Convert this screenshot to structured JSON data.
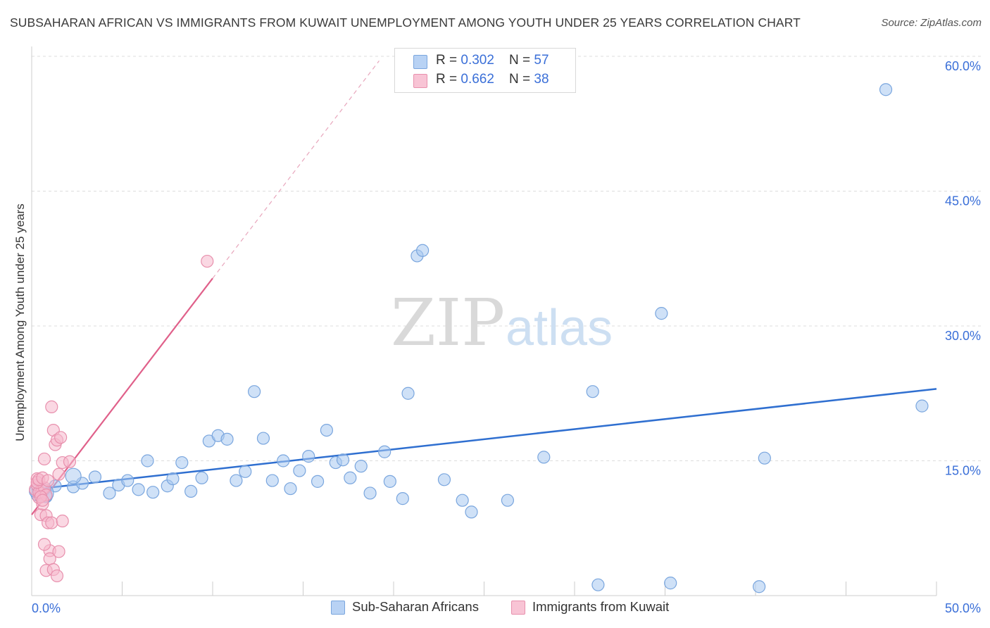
{
  "header": {
    "title": "SUBSAHARAN AFRICAN VS IMMIGRANTS FROM KUWAIT UNEMPLOYMENT AMONG YOUTH UNDER 25 YEARS CORRELATION CHART",
    "source": "Source: ZipAtlas.com"
  },
  "watermark": {
    "zip": "ZIP",
    "atlas": "atlas"
  },
  "legend": {
    "rows": [
      {
        "r_label": "R = ",
        "r_value": "0.302",
        "n_label": "N = ",
        "n_value": "57"
      },
      {
        "r_label": "R = ",
        "r_value": "0.662",
        "n_label": "N = ",
        "n_value": "38"
      }
    ],
    "bottom": [
      "Sub-Saharan Africans",
      "Immigrants from Kuwait"
    ]
  },
  "colors": {
    "blue_fill": "#a8c8f0",
    "blue_stroke": "#7aa6de",
    "blue_line": "#2f6fd0",
    "pink_fill": "#f5b8cc",
    "pink_stroke": "#e890ad",
    "pink_line": "#e0608a",
    "axis_label": "#3a6fd8",
    "grid": "#dddddd"
  },
  "chart_data": {
    "type": "scatter",
    "title": "SUBSAHARAN AFRICAN VS IMMIGRANTS FROM KUWAIT UNEMPLOYMENT AMONG YOUTH UNDER 25 YEARS CORRELATION CHART",
    "xlabel": "",
    "ylabel": "Unemployment Among Youth under 25 years",
    "xlim": [
      0,
      50
    ],
    "ylim": [
      0,
      60
    ],
    "x_tick_labels": [
      "0.0%",
      "50.0%"
    ],
    "y_tick_labels": [
      "15.0%",
      "30.0%",
      "45.0%",
      "60.0%"
    ],
    "y_ticks": [
      15,
      30,
      45,
      60
    ],
    "grid": true,
    "legend_position": "top-center",
    "series": [
      {
        "name": "Sub-Saharan Africans",
        "R": 0.302,
        "N": 57,
        "trend": {
          "x": [
            0,
            50
          ],
          "y": [
            11.8,
            23.0
          ]
        },
        "points": [
          [
            0.3,
            11.2
          ],
          [
            0.5,
            11.5
          ],
          [
            0.8,
            11.0
          ],
          [
            1.3,
            12.2
          ],
          [
            2.3,
            12.1
          ],
          [
            2.8,
            12.5
          ],
          [
            3.5,
            13.2
          ],
          [
            4.3,
            11.4
          ],
          [
            4.8,
            12.3
          ],
          [
            5.3,
            12.8
          ],
          [
            5.9,
            11.8
          ],
          [
            6.4,
            15.0
          ],
          [
            6.7,
            11.5
          ],
          [
            7.5,
            12.2
          ],
          [
            7.8,
            13.0
          ],
          [
            8.3,
            14.8
          ],
          [
            8.8,
            11.6
          ],
          [
            9.4,
            13.1
          ],
          [
            9.8,
            17.2
          ],
          [
            10.3,
            17.8
          ],
          [
            10.8,
            17.4
          ],
          [
            11.3,
            12.8
          ],
          [
            11.8,
            13.8
          ],
          [
            12.3,
            22.7
          ],
          [
            12.8,
            17.5
          ],
          [
            13.3,
            12.8
          ],
          [
            13.9,
            15.0
          ],
          [
            14.3,
            11.9
          ],
          [
            14.8,
            13.9
          ],
          [
            15.3,
            15.5
          ],
          [
            15.8,
            12.7
          ],
          [
            16.3,
            18.4
          ],
          [
            16.8,
            14.8
          ],
          [
            17.2,
            15.1
          ],
          [
            17.6,
            13.1
          ],
          [
            18.2,
            14.4
          ],
          [
            18.7,
            11.4
          ],
          [
            19.5,
            16.0
          ],
          [
            19.8,
            12.7
          ],
          [
            20.5,
            10.8
          ],
          [
            20.8,
            22.5
          ],
          [
            21.3,
            37.8
          ],
          [
            21.6,
            38.4
          ],
          [
            22.8,
            12.9
          ],
          [
            23.8,
            10.6
          ],
          [
            24.3,
            9.3
          ],
          [
            26.3,
            10.6
          ],
          [
            28.3,
            15.4
          ],
          [
            31.0,
            22.7
          ],
          [
            31.3,
            1.2
          ],
          [
            34.8,
            31.4
          ],
          [
            35.3,
            1.4
          ],
          [
            40.2,
            1.0
          ],
          [
            40.5,
            15.3
          ],
          [
            47.2,
            56.3
          ],
          [
            49.2,
            21.1
          ],
          [
            0.2,
            11.6
          ]
        ]
      },
      {
        "name": "Immigrants from Kuwait",
        "R": 0.662,
        "N": 38,
        "trend": {
          "x": [
            0,
            10
          ],
          "y": [
            9.0,
            35.3
          ]
        },
        "trend_dashed": {
          "x": [
            10,
            19.2
          ],
          "y": [
            35.3,
            59.5
          ]
        },
        "points": [
          [
            0.2,
            11.8
          ],
          [
            0.3,
            12.3
          ],
          [
            0.4,
            10.9
          ],
          [
            0.5,
            11.4
          ],
          [
            0.6,
            11.9
          ],
          [
            0.3,
            13.0
          ],
          [
            0.4,
            11.5
          ],
          [
            0.5,
            9.0
          ],
          [
            0.6,
            10.2
          ],
          [
            0.7,
            12.0
          ],
          [
            0.8,
            11.2
          ],
          [
            0.3,
            12.6
          ],
          [
            0.4,
            12.9
          ],
          [
            0.6,
            13.1
          ],
          [
            0.5,
            11.0
          ],
          [
            0.7,
            15.2
          ],
          [
            0.8,
            8.9
          ],
          [
            0.9,
            8.1
          ],
          [
            1.0,
            5.0
          ],
          [
            1.0,
            4.1
          ],
          [
            1.1,
            21.0
          ],
          [
            1.2,
            18.4
          ],
          [
            1.3,
            16.8
          ],
          [
            1.4,
            17.3
          ],
          [
            1.5,
            13.5
          ],
          [
            1.6,
            17.6
          ],
          [
            1.7,
            14.8
          ],
          [
            1.1,
            8.1
          ],
          [
            1.7,
            8.3
          ],
          [
            0.7,
            5.7
          ],
          [
            0.8,
            2.8
          ],
          [
            1.2,
            2.9
          ],
          [
            1.4,
            2.2
          ],
          [
            1.5,
            4.9
          ],
          [
            2.1,
            14.9
          ],
          [
            9.7,
            37.2
          ],
          [
            0.9,
            12.8
          ],
          [
            0.6,
            10.6
          ]
        ]
      }
    ]
  }
}
